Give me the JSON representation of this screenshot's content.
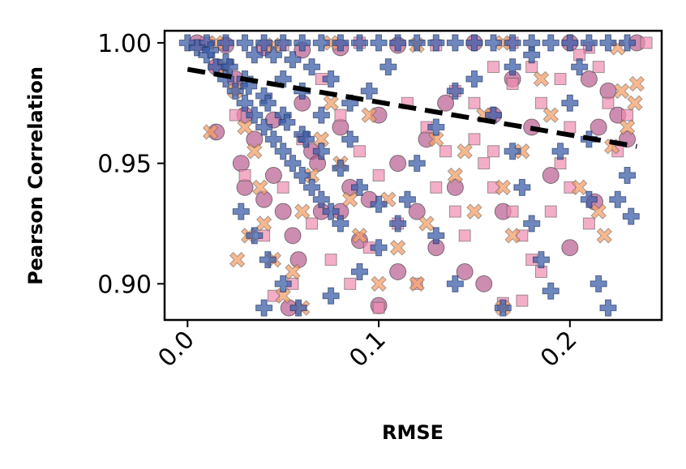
{
  "chart_data": {
    "type": "scatter",
    "title": "",
    "xlabel": "RMSE",
    "ylabel": "Pearson Correlation",
    "xlim": [
      -0.012,
      0.248
    ],
    "ylim": [
      0.885,
      1.005
    ],
    "xticks": [
      0.0,
      0.1,
      0.2
    ],
    "xtick_labels": [
      "0.0",
      "0.1",
      "0.2"
    ],
    "yticks": [
      0.9,
      0.95,
      1.0
    ],
    "ytick_labels": [
      "0.90",
      "0.95",
      "1.00"
    ],
    "grid": false,
    "legend": "none",
    "colors": {
      "circle": "#b85c8f",
      "square": "#f08cb0",
      "x": "#f4a06a",
      "plus": "#3d5fa8",
      "trend": "#000000"
    },
    "series": [
      {
        "marker": "circle",
        "points": [
          [
            0.005,
            1.0
          ],
          [
            0.02,
            0.999
          ],
          [
            0.04,
            0.998
          ],
          [
            0.06,
            0.997
          ],
          [
            0.08,
            0.998
          ],
          [
            0.11,
            0.999
          ],
          [
            0.15,
            1.0
          ],
          [
            0.2,
            1.0
          ],
          [
            0.235,
            1.0
          ],
          [
            0.015,
            0.99
          ],
          [
            0.025,
            0.985
          ],
          [
            0.03,
            0.97
          ],
          [
            0.035,
            0.96
          ],
          [
            0.015,
            0.963
          ],
          [
            0.028,
            0.95
          ],
          [
            0.03,
            0.94
          ],
          [
            0.04,
            0.935
          ],
          [
            0.045,
            0.945
          ],
          [
            0.05,
            0.93
          ],
          [
            0.055,
            0.92
          ],
          [
            0.06,
            0.975
          ],
          [
            0.065,
            0.955
          ],
          [
            0.07,
            0.93
          ],
          [
            0.08,
            0.965
          ],
          [
            0.085,
            0.94
          ],
          [
            0.095,
            0.935
          ],
          [
            0.1,
            0.97
          ],
          [
            0.11,
            0.95
          ],
          [
            0.12,
            0.93
          ],
          [
            0.125,
            0.96
          ],
          [
            0.135,
            0.975
          ],
          [
            0.14,
            0.94
          ],
          [
            0.145,
            0.905
          ],
          [
            0.155,
            0.9
          ],
          [
            0.16,
            0.97
          ],
          [
            0.165,
            0.93
          ],
          [
            0.17,
            0.985
          ],
          [
            0.18,
            0.965
          ],
          [
            0.19,
            0.945
          ],
          [
            0.2,
            0.915
          ],
          [
            0.21,
            0.985
          ],
          [
            0.215,
            0.965
          ],
          [
            0.22,
            0.98
          ],
          [
            0.225,
            0.97
          ],
          [
            0.23,
            0.96
          ],
          [
            0.213,
            0.934
          ],
          [
            0.1,
            0.891
          ],
          [
            0.08,
            0.93
          ],
          [
            0.058,
            0.91
          ],
          [
            0.045,
            0.968
          ],
          [
            0.068,
            0.95
          ],
          [
            0.053,
            0.89
          ],
          [
            0.09,
            0.918
          ],
          [
            0.11,
            0.905
          ],
          [
            0.13,
            0.915
          ]
        ]
      },
      {
        "marker": "square",
        "points": [
          [
            0.01,
            1.0
          ],
          [
            0.05,
            0.999
          ],
          [
            0.09,
            1.0
          ],
          [
            0.13,
            0.999
          ],
          [
            0.17,
            1.0
          ],
          [
            0.21,
            0.998
          ],
          [
            0.24,
            1.0
          ],
          [
            0.16,
            0.99
          ],
          [
            0.17,
            0.983
          ],
          [
            0.18,
            0.99
          ],
          [
            0.185,
            0.975
          ],
          [
            0.195,
            0.985
          ],
          [
            0.205,
            0.995
          ],
          [
            0.215,
            0.99
          ],
          [
            0.14,
            0.98
          ],
          [
            0.15,
            0.96
          ],
          [
            0.155,
            0.95
          ],
          [
            0.16,
            0.94
          ],
          [
            0.17,
            0.93
          ],
          [
            0.175,
            0.92
          ],
          [
            0.18,
            0.91
          ],
          [
            0.185,
            0.905
          ],
          [
            0.19,
            0.93
          ],
          [
            0.2,
            0.94
          ],
          [
            0.21,
            0.925
          ],
          [
            0.165,
            0.892
          ],
          [
            0.175,
            0.893
          ],
          [
            0.12,
            0.9
          ],
          [
            0.11,
            0.925
          ],
          [
            0.1,
            0.945
          ],
          [
            0.09,
            0.955
          ],
          [
            0.08,
            0.97
          ],
          [
            0.07,
            0.985
          ],
          [
            0.06,
            0.96
          ],
          [
            0.05,
            0.94
          ],
          [
            0.04,
            0.92
          ],
          [
            0.03,
            0.945
          ],
          [
            0.025,
            0.97
          ],
          [
            0.13,
            0.94
          ],
          [
            0.14,
            0.93
          ],
          [
            0.145,
            0.92
          ],
          [
            0.1,
            0.89
          ],
          [
            0.085,
            0.9
          ],
          [
            0.075,
            0.91
          ],
          [
            0.065,
            0.925
          ],
          [
            0.125,
            0.965
          ],
          [
            0.135,
            0.955
          ],
          [
            0.115,
            0.975
          ],
          [
            0.2,
            0.965
          ],
          [
            0.195,
            0.95
          ],
          [
            0.225,
            0.955
          ],
          [
            0.23,
            0.97
          ],
          [
            0.22,
            0.975
          ],
          [
            0.15,
            0.975
          ],
          [
            0.16,
            0.955
          ],
          [
            0.095,
            0.915
          ],
          [
            0.055,
            0.9
          ],
          [
            0.045,
            0.895
          ]
        ]
      },
      {
        "marker": "x",
        "points": [
          [
            0.015,
            1.0
          ],
          [
            0.045,
            0.999
          ],
          [
            0.075,
            1.0
          ],
          [
            0.12,
            0.999
          ],
          [
            0.165,
            1.0
          ],
          [
            0.225,
            0.998
          ],
          [
            0.02,
            0.99
          ],
          [
            0.025,
            0.98
          ],
          [
            0.03,
            0.965
          ],
          [
            0.035,
            0.955
          ],
          [
            0.038,
            0.94
          ],
          [
            0.04,
            0.925
          ],
          [
            0.045,
            0.91
          ],
          [
            0.05,
            0.895
          ],
          [
            0.055,
            0.905
          ],
          [
            0.06,
            0.93
          ],
          [
            0.065,
            0.945
          ],
          [
            0.07,
            0.96
          ],
          [
            0.075,
            0.975
          ],
          [
            0.08,
            0.95
          ],
          [
            0.085,
            0.935
          ],
          [
            0.09,
            0.92
          ],
          [
            0.095,
            0.97
          ],
          [
            0.105,
            0.935
          ],
          [
            0.11,
            0.915
          ],
          [
            0.12,
            0.9
          ],
          [
            0.125,
            0.925
          ],
          [
            0.13,
            0.96
          ],
          [
            0.14,
            0.945
          ],
          [
            0.15,
            0.93
          ],
          [
            0.155,
            0.97
          ],
          [
            0.165,
            0.94
          ],
          [
            0.17,
            0.92
          ],
          [
            0.175,
            0.955
          ],
          [
            0.185,
            0.985
          ],
          [
            0.19,
            0.97
          ],
          [
            0.215,
            0.93
          ],
          [
            0.218,
            0.92
          ],
          [
            0.222,
            0.957
          ],
          [
            0.227,
            0.98
          ],
          [
            0.23,
            0.965
          ],
          [
            0.234,
            0.975
          ],
          [
            0.235,
            0.983
          ],
          [
            0.012,
            0.963
          ],
          [
            0.032,
            0.92
          ],
          [
            0.026,
            0.91
          ],
          [
            0.1,
            0.9
          ],
          [
            0.165,
            0.89
          ],
          [
            0.205,
            0.94
          ],
          [
            0.06,
            0.89
          ],
          [
            0.145,
            0.955
          ]
        ]
      },
      {
        "marker": "plus",
        "points": [
          [
            0.0,
            1.0
          ],
          [
            0.01,
            1.0
          ],
          [
            0.02,
            1.0
          ],
          [
            0.03,
            1.0
          ],
          [
            0.04,
            1.0
          ],
          [
            0.05,
            1.0
          ],
          [
            0.06,
            1.0
          ],
          [
            0.07,
            1.0
          ],
          [
            0.08,
            1.0
          ],
          [
            0.09,
            1.0
          ],
          [
            0.1,
            1.0
          ],
          [
            0.11,
            1.0
          ],
          [
            0.12,
            1.0
          ],
          [
            0.13,
            1.0
          ],
          [
            0.14,
            1.0
          ],
          [
            0.15,
            1.0
          ],
          [
            0.16,
            1.0
          ],
          [
            0.17,
            1.0
          ],
          [
            0.18,
            1.0
          ],
          [
            0.19,
            1.0
          ],
          [
            0.2,
            1.0
          ],
          [
            0.21,
            1.0
          ],
          [
            0.22,
            1.0
          ],
          [
            0.23,
            1.0
          ],
          [
            0.005,
            0.998
          ],
          [
            0.01,
            0.995
          ],
          [
            0.015,
            0.99
          ],
          [
            0.02,
            0.985
          ],
          [
            0.025,
            0.98
          ],
          [
            0.03,
            0.975
          ],
          [
            0.035,
            0.97
          ],
          [
            0.04,
            0.965
          ],
          [
            0.045,
            0.96
          ],
          [
            0.05,
            0.955
          ],
          [
            0.055,
            0.95
          ],
          [
            0.06,
            0.945
          ],
          [
            0.065,
            0.94
          ],
          [
            0.07,
            0.935
          ],
          [
            0.075,
            0.93
          ],
          [
            0.08,
            0.925
          ],
          [
            0.02,
            0.992
          ],
          [
            0.03,
            0.985
          ],
          [
            0.04,
            0.978
          ],
          [
            0.05,
            0.97
          ],
          [
            0.06,
            0.962
          ],
          [
            0.07,
            0.955
          ],
          [
            0.08,
            0.948
          ],
          [
            0.09,
            0.94
          ],
          [
            0.1,
            0.933
          ],
          [
            0.11,
            0.925
          ],
          [
            0.012,
            0.997
          ],
          [
            0.022,
            0.99
          ],
          [
            0.032,
            0.982
          ],
          [
            0.042,
            0.975
          ],
          [
            0.052,
            0.967
          ],
          [
            0.062,
            0.96
          ],
          [
            0.028,
            0.93
          ],
          [
            0.035,
            0.92
          ],
          [
            0.042,
            0.91
          ],
          [
            0.05,
            0.9
          ],
          [
            0.058,
            0.89
          ],
          [
            0.075,
            0.895
          ],
          [
            0.09,
            0.905
          ],
          [
            0.1,
            0.915
          ],
          [
            0.115,
            0.935
          ],
          [
            0.12,
            0.95
          ],
          [
            0.13,
            0.965
          ],
          [
            0.14,
            0.98
          ],
          [
            0.15,
            0.985
          ],
          [
            0.16,
            0.97
          ],
          [
            0.17,
            0.955
          ],
          [
            0.175,
            0.94
          ],
          [
            0.18,
            0.925
          ],
          [
            0.185,
            0.91
          ],
          [
            0.19,
            0.897
          ],
          [
            0.195,
            0.955
          ],
          [
            0.2,
            0.975
          ],
          [
            0.21,
            0.96
          ],
          [
            0.215,
            0.9
          ],
          [
            0.22,
            0.89
          ],
          [
            0.225,
            0.935
          ],
          [
            0.23,
            0.945
          ],
          [
            0.232,
            0.928
          ],
          [
            0.21,
            0.935
          ],
          [
            0.165,
            0.89
          ],
          [
            0.04,
            0.89
          ],
          [
            0.13,
            0.92
          ],
          [
            0.14,
            0.9
          ],
          [
            0.17,
            0.99
          ],
          [
            0.18,
            0.995
          ],
          [
            0.205,
            0.99
          ],
          [
            0.085,
            0.96
          ],
          [
            0.095,
            0.98
          ],
          [
            0.105,
            0.99
          ],
          [
            0.065,
            0.99
          ],
          [
            0.075,
            0.985
          ],
          [
            0.045,
            0.995
          ],
          [
            0.055,
            0.993
          ],
          [
            0.035,
            0.995
          ],
          [
            0.085,
            0.975
          ],
          [
            0.07,
            0.97
          ],
          [
            0.06,
            0.98
          ],
          [
            0.05,
            0.985
          ]
        ]
      }
    ],
    "trend_line": {
      "style": "dashed",
      "x": [
        0.0,
        0.235
      ],
      "y": [
        0.989,
        0.957
      ]
    }
  }
}
